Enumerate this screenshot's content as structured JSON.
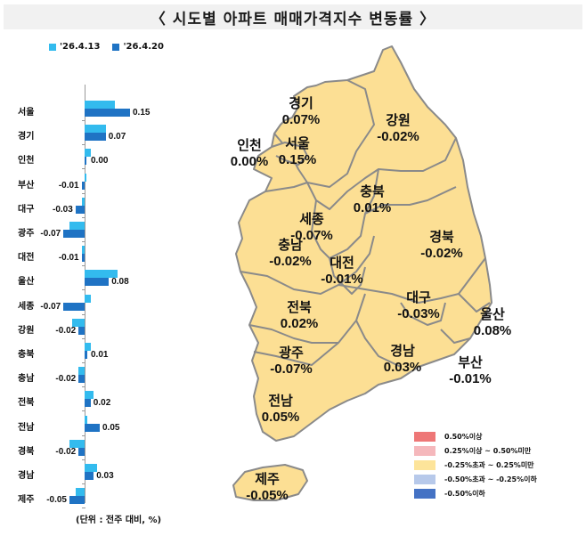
{
  "title": "〈 시도별 아파트 매매가격지수 변동률 〉",
  "chart_data": {
    "type": "bar",
    "orientation": "horizontal",
    "title": "시도별 아파트 매매가격지수 변동률",
    "categories": [
      "서울",
      "경기",
      "인천",
      "부산",
      "대구",
      "광주",
      "대전",
      "울산",
      "세종",
      "강원",
      "충북",
      "충남",
      "전북",
      "전남",
      "경북",
      "경남",
      "제주"
    ],
    "series": [
      {
        "name": "'26.4.13",
        "color": "#33bbee",
        "values": [
          0.1,
          0.07,
          0.02,
          0.0,
          -0.01,
          -0.05,
          -0.01,
          0.11,
          0.02,
          -0.04,
          0.02,
          -0.02,
          0.03,
          0.01,
          -0.05,
          0.04,
          -0.03
        ]
      },
      {
        "name": "'26.4.20",
        "color": "#1f73c4",
        "values": [
          0.15,
          0.07,
          0.0,
          -0.01,
          -0.03,
          -0.07,
          -0.01,
          0.08,
          -0.07,
          -0.02,
          0.01,
          -0.02,
          0.02,
          0.05,
          -0.02,
          0.03,
          -0.05
        ]
      }
    ],
    "value_labels": [
      "0.15",
      "0.07",
      "0.00",
      "-0.01",
      "-0.03",
      "-0.07",
      "-0.01",
      "0.08",
      "-0.07",
      "-0.02",
      "0.01",
      "-0.02",
      "0.02",
      "0.05",
      "-0.02",
      "0.03",
      "-0.05"
    ],
    "xlabel": "",
    "ylabel": "",
    "unit_note": "(단위 : 전주 대비, %)",
    "legend_position": "top",
    "grid": false
  },
  "legend": {
    "prev": "'26.4.13",
    "curr": "'26.4.20",
    "prev_color": "#33bbee",
    "curr_color": "#1f73c4"
  },
  "unit": "(단위 : 전주 대비, %)",
  "map": {
    "fill_color": "#fcdf94",
    "border_color": "#8a8a8a",
    "regions": [
      {
        "name": "경기",
        "value": "0.07%"
      },
      {
        "name": "강원",
        "value": "-0.02%"
      },
      {
        "name": "인천",
        "value": "0.00%"
      },
      {
        "name": "서울",
        "value": "0.15%"
      },
      {
        "name": "충북",
        "value": "0.01%"
      },
      {
        "name": "세종",
        "value": "-0.07%"
      },
      {
        "name": "경북",
        "value": "-0.02%"
      },
      {
        "name": "충남",
        "value": "-0.02%"
      },
      {
        "name": "대전",
        "value": "-0.01%"
      },
      {
        "name": "대구",
        "value": "-0.03%"
      },
      {
        "name": "울산",
        "value": "0.08%"
      },
      {
        "name": "전북",
        "value": "0.02%"
      },
      {
        "name": "광주",
        "value": "-0.07%"
      },
      {
        "name": "경남",
        "value": "0.03%"
      },
      {
        "name": "부산",
        "value": "-0.01%"
      },
      {
        "name": "전남",
        "value": "0.05%"
      },
      {
        "name": "제주",
        "value": "-0.05%"
      }
    ]
  },
  "map_legend": [
    {
      "label": "0.50%이상",
      "color": "#ee7777"
    },
    {
      "label": "0.25%이상 ~ 0.50%미만",
      "color": "#f5b8bc"
    },
    {
      "label": "-0.25%초과 ~ 0.25%미만",
      "color": "#fde49a"
    },
    {
      "label": "-0.50%초과 ~ -0.25%이하",
      "color": "#b7c9ea"
    },
    {
      "label": "-0.50%이하",
      "color": "#4472c4"
    }
  ]
}
